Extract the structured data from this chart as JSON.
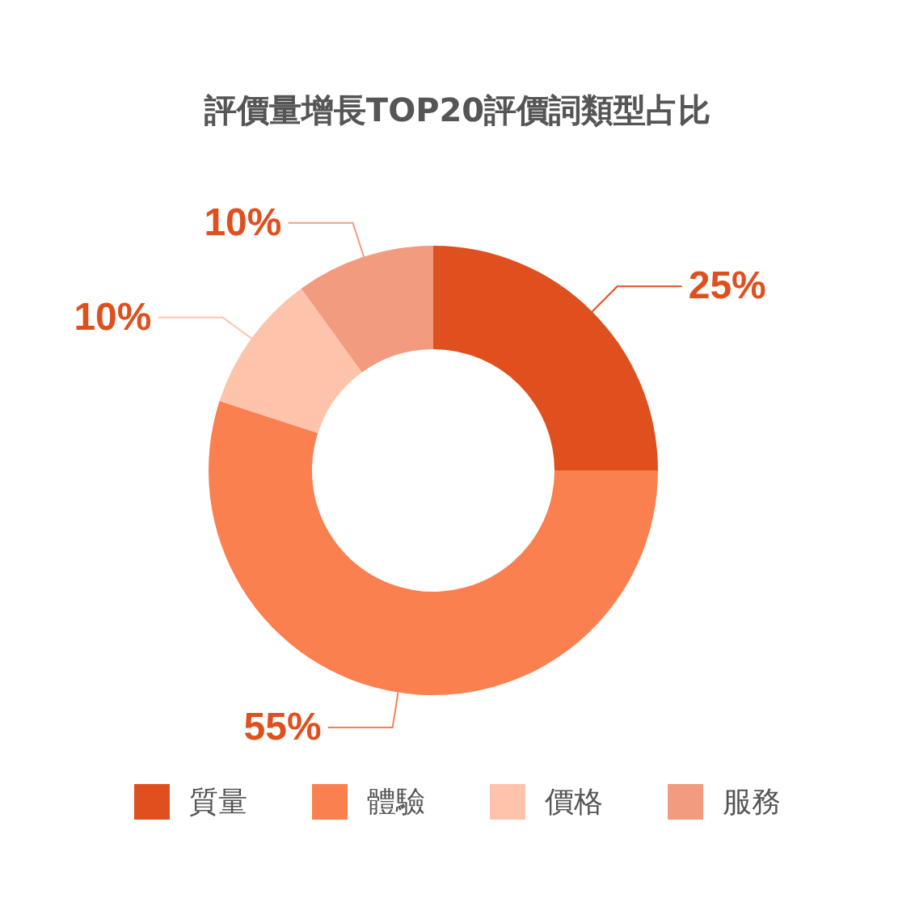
{
  "chart_data": {
    "type": "donut",
    "title": "評價量增長TOP20評價詞類型占比",
    "categories": [
      "質量",
      "體驗",
      "價格",
      "服務"
    ],
    "values": [
      25,
      55,
      10,
      10
    ],
    "colors": [
      "#e0501e",
      "#fa8050",
      "#fdc4ab",
      "#f39b7f"
    ],
    "value_labels": [
      "25%",
      "55%",
      "10%",
      "10%"
    ],
    "legend": "bottom"
  }
}
